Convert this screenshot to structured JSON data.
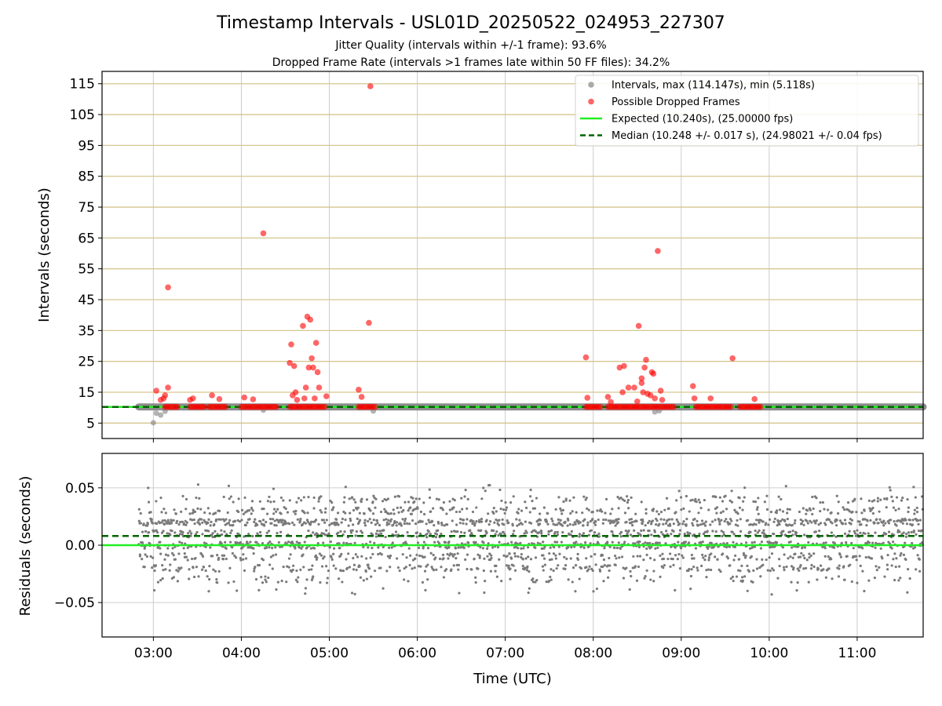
{
  "header": {
    "title": "Timestamp Intervals - USL01D_20250522_024953_227307",
    "subtitle_1": "Jitter Quality (intervals within +/-1 frame): 93.6%",
    "subtitle_2": "Dropped Frame Rate (intervals >1 frames late within 50 FF files): 34.2%"
  },
  "colors": {
    "intervals": "#808080",
    "dropped": "#ff0000",
    "expected": "#22ee22",
    "median": "#006400",
    "hgrid_top": "#d6c690",
    "grid": "#cccccc"
  },
  "chart_data": [
    {
      "type": "scatter",
      "name": "intervals-panel",
      "xlabel": "Time (UTC)",
      "ylabel": "Intervals (seconds)",
      "xlim": [
        "02:25",
        "11:45"
      ],
      "ylim": [
        0,
        119
      ],
      "yticks": [
        5,
        15,
        25,
        35,
        45,
        55,
        65,
        75,
        85,
        95,
        105,
        115
      ],
      "legend": {
        "position": "top-right",
        "entries": [
          {
            "label": "Intervals, max (114.147s), min (5.118s)",
            "kind": "dot",
            "color": "#a0a0a0"
          },
          {
            "label": "Possible Dropped Frames",
            "kind": "dot",
            "color": "#ff5555"
          },
          {
            "label": "Expected (10.240s), (25.00000 fps)",
            "kind": "line",
            "color": "#22ee22"
          },
          {
            "label": "Median (10.248 +/- 0.017 s), (24.98021 +/- 0.04 fps)",
            "kind": "dash",
            "color": "#006400"
          }
        ]
      },
      "expected_y": 10.24,
      "median_y": 10.248,
      "interval_band": {
        "x_start": "02:50",
        "x_end": "11:45",
        "y": 10.24
      },
      "interval_outliers": [
        {
          "x": "03:00",
          "y": 5.1
        },
        {
          "x": "03:02",
          "y": 8.2
        },
        {
          "x": "03:05",
          "y": 7.6
        },
        {
          "x": "03:08",
          "y": 8.8
        },
        {
          "x": "04:15",
          "y": 9.2
        },
        {
          "x": "05:30",
          "y": 8.9
        },
        {
          "x": "08:42",
          "y": 8.6
        },
        {
          "x": "08:45",
          "y": 9.0
        }
      ],
      "dropped_base_segments": [
        [
          "03:08",
          "03:17"
        ],
        [
          "03:25",
          "03:35"
        ],
        [
          "03:38",
          "03:50"
        ],
        [
          "04:00",
          "04:25"
        ],
        [
          "04:33",
          "04:58"
        ],
        [
          "05:20",
          "05:32"
        ],
        [
          "07:55",
          "08:05"
        ],
        [
          "08:10",
          "08:55"
        ],
        [
          "09:10",
          "09:35"
        ],
        [
          "09:40",
          "09:55"
        ]
      ],
      "dropped_points": [
        {
          "x": "03:02",
          "y": 15.5
        },
        {
          "x": "03:05",
          "y": 12.5
        },
        {
          "x": "03:07",
          "y": 13.0
        },
        {
          "x": "03:08",
          "y": 14.0
        },
        {
          "x": "03:10",
          "y": 16.5
        },
        {
          "x": "03:10",
          "y": 49.0
        },
        {
          "x": "03:25",
          "y": 12.5
        },
        {
          "x": "03:27",
          "y": 13.0
        },
        {
          "x": "03:40",
          "y": 14.0
        },
        {
          "x": "03:45",
          "y": 12.8
        },
        {
          "x": "04:02",
          "y": 13.3
        },
        {
          "x": "04:08",
          "y": 12.7
        },
        {
          "x": "04:15",
          "y": 66.5
        },
        {
          "x": "04:33",
          "y": 24.5
        },
        {
          "x": "04:34",
          "y": 30.5
        },
        {
          "x": "04:35",
          "y": 14.0
        },
        {
          "x": "04:36",
          "y": 23.5
        },
        {
          "x": "04:37",
          "y": 15.0
        },
        {
          "x": "04:38",
          "y": 12.5
        },
        {
          "x": "04:42",
          "y": 36.5
        },
        {
          "x": "04:43",
          "y": 13.0
        },
        {
          "x": "04:44",
          "y": 16.5
        },
        {
          "x": "04:45",
          "y": 39.5
        },
        {
          "x": "04:46",
          "y": 23.0
        },
        {
          "x": "04:47",
          "y": 38.5
        },
        {
          "x": "04:48",
          "y": 26.0
        },
        {
          "x": "04:49",
          "y": 23.0
        },
        {
          "x": "04:50",
          "y": 13.0
        },
        {
          "x": "04:51",
          "y": 31.0
        },
        {
          "x": "04:52",
          "y": 21.5
        },
        {
          "x": "04:53",
          "y": 16.5
        },
        {
          "x": "04:58",
          "y": 13.7
        },
        {
          "x": "05:20",
          "y": 15.8
        },
        {
          "x": "05:22",
          "y": 13.5
        },
        {
          "x": "05:27",
          "y": 37.5
        },
        {
          "x": "05:28",
          "y": 114.2
        },
        {
          "x": "07:55",
          "y": 26.3
        },
        {
          "x": "07:56",
          "y": 13.2
        },
        {
          "x": "08:10",
          "y": 13.5
        },
        {
          "x": "08:12",
          "y": 11.8
        },
        {
          "x": "08:18",
          "y": 23.0
        },
        {
          "x": "08:20",
          "y": 15.0
        },
        {
          "x": "08:21",
          "y": 23.5
        },
        {
          "x": "08:24",
          "y": 16.5
        },
        {
          "x": "08:28",
          "y": 16.5
        },
        {
          "x": "08:30",
          "y": 12.0
        },
        {
          "x": "08:31",
          "y": 36.5
        },
        {
          "x": "08:33",
          "y": 19.5
        },
        {
          "x": "08:33",
          "y": 18.0
        },
        {
          "x": "08:34",
          "y": 15.0
        },
        {
          "x": "08:35",
          "y": 23.0
        },
        {
          "x": "08:36",
          "y": 25.5
        },
        {
          "x": "08:37",
          "y": 14.5
        },
        {
          "x": "08:39",
          "y": 14.0
        },
        {
          "x": "08:40",
          "y": 21.5
        },
        {
          "x": "08:41",
          "y": 21.0
        },
        {
          "x": "08:42",
          "y": 13.0
        },
        {
          "x": "08:44",
          "y": 60.8
        },
        {
          "x": "08:46",
          "y": 15.5
        },
        {
          "x": "08:47",
          "y": 12.5
        },
        {
          "x": "09:08",
          "y": 17.0
        },
        {
          "x": "09:09",
          "y": 13.0
        },
        {
          "x": "09:20",
          "y": 13.0
        },
        {
          "x": "09:35",
          "y": 26.0
        },
        {
          "x": "09:50",
          "y": 12.8
        }
      ]
    },
    {
      "type": "scatter",
      "name": "residuals-panel",
      "xlabel": "Time (UTC)",
      "ylabel": "Residuals (seconds)",
      "xlim": [
        "02:25",
        "11:45"
      ],
      "ylim": [
        -0.08,
        0.08
      ],
      "yticks": [
        -0.05,
        0.0,
        0.05
      ],
      "ytick_labels": [
        "−0.05",
        "0.00",
        "0.05"
      ],
      "xticks": [
        "03:00",
        "04:00",
        "05:00",
        "06:00",
        "07:00",
        "08:00",
        "09:00",
        "10:00",
        "11:00"
      ],
      "expected_y": 0.0,
      "median_y": 0.008,
      "point_cloud": {
        "x_start": "02:50",
        "x_end": "11:45",
        "levels": [
          -0.04,
          -0.03,
          -0.02,
          -0.01,
          0.0,
          0.01,
          0.02,
          0.03,
          0.04,
          0.05
        ],
        "level_weights": [
          1,
          3,
          9,
          10,
          18,
          12,
          20,
          9,
          5,
          1
        ],
        "jitter": 0.003,
        "count": 2600
      }
    }
  ]
}
